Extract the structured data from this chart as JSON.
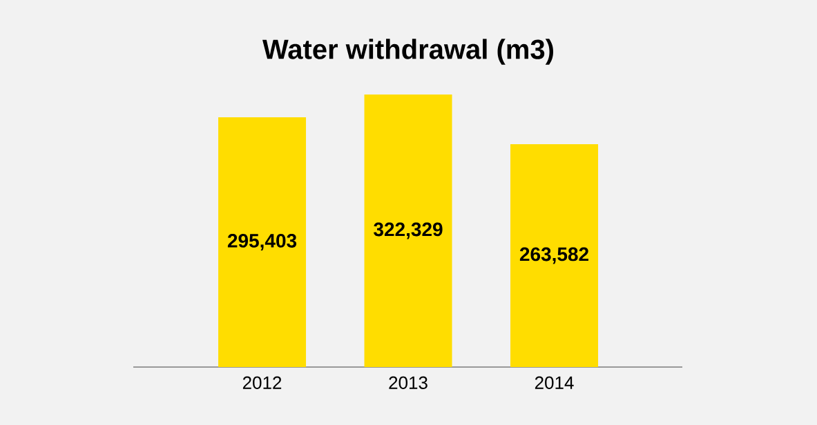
{
  "chart_data": {
    "type": "bar",
    "title": "Water withdrawal (m3)",
    "categories": [
      "2012",
      "2013",
      "2014"
    ],
    "values": [
      295403,
      322329,
      263582
    ],
    "color": "#ffdd00",
    "value_labels": [
      "295,403",
      "322,329",
      "263,582"
    ]
  }
}
